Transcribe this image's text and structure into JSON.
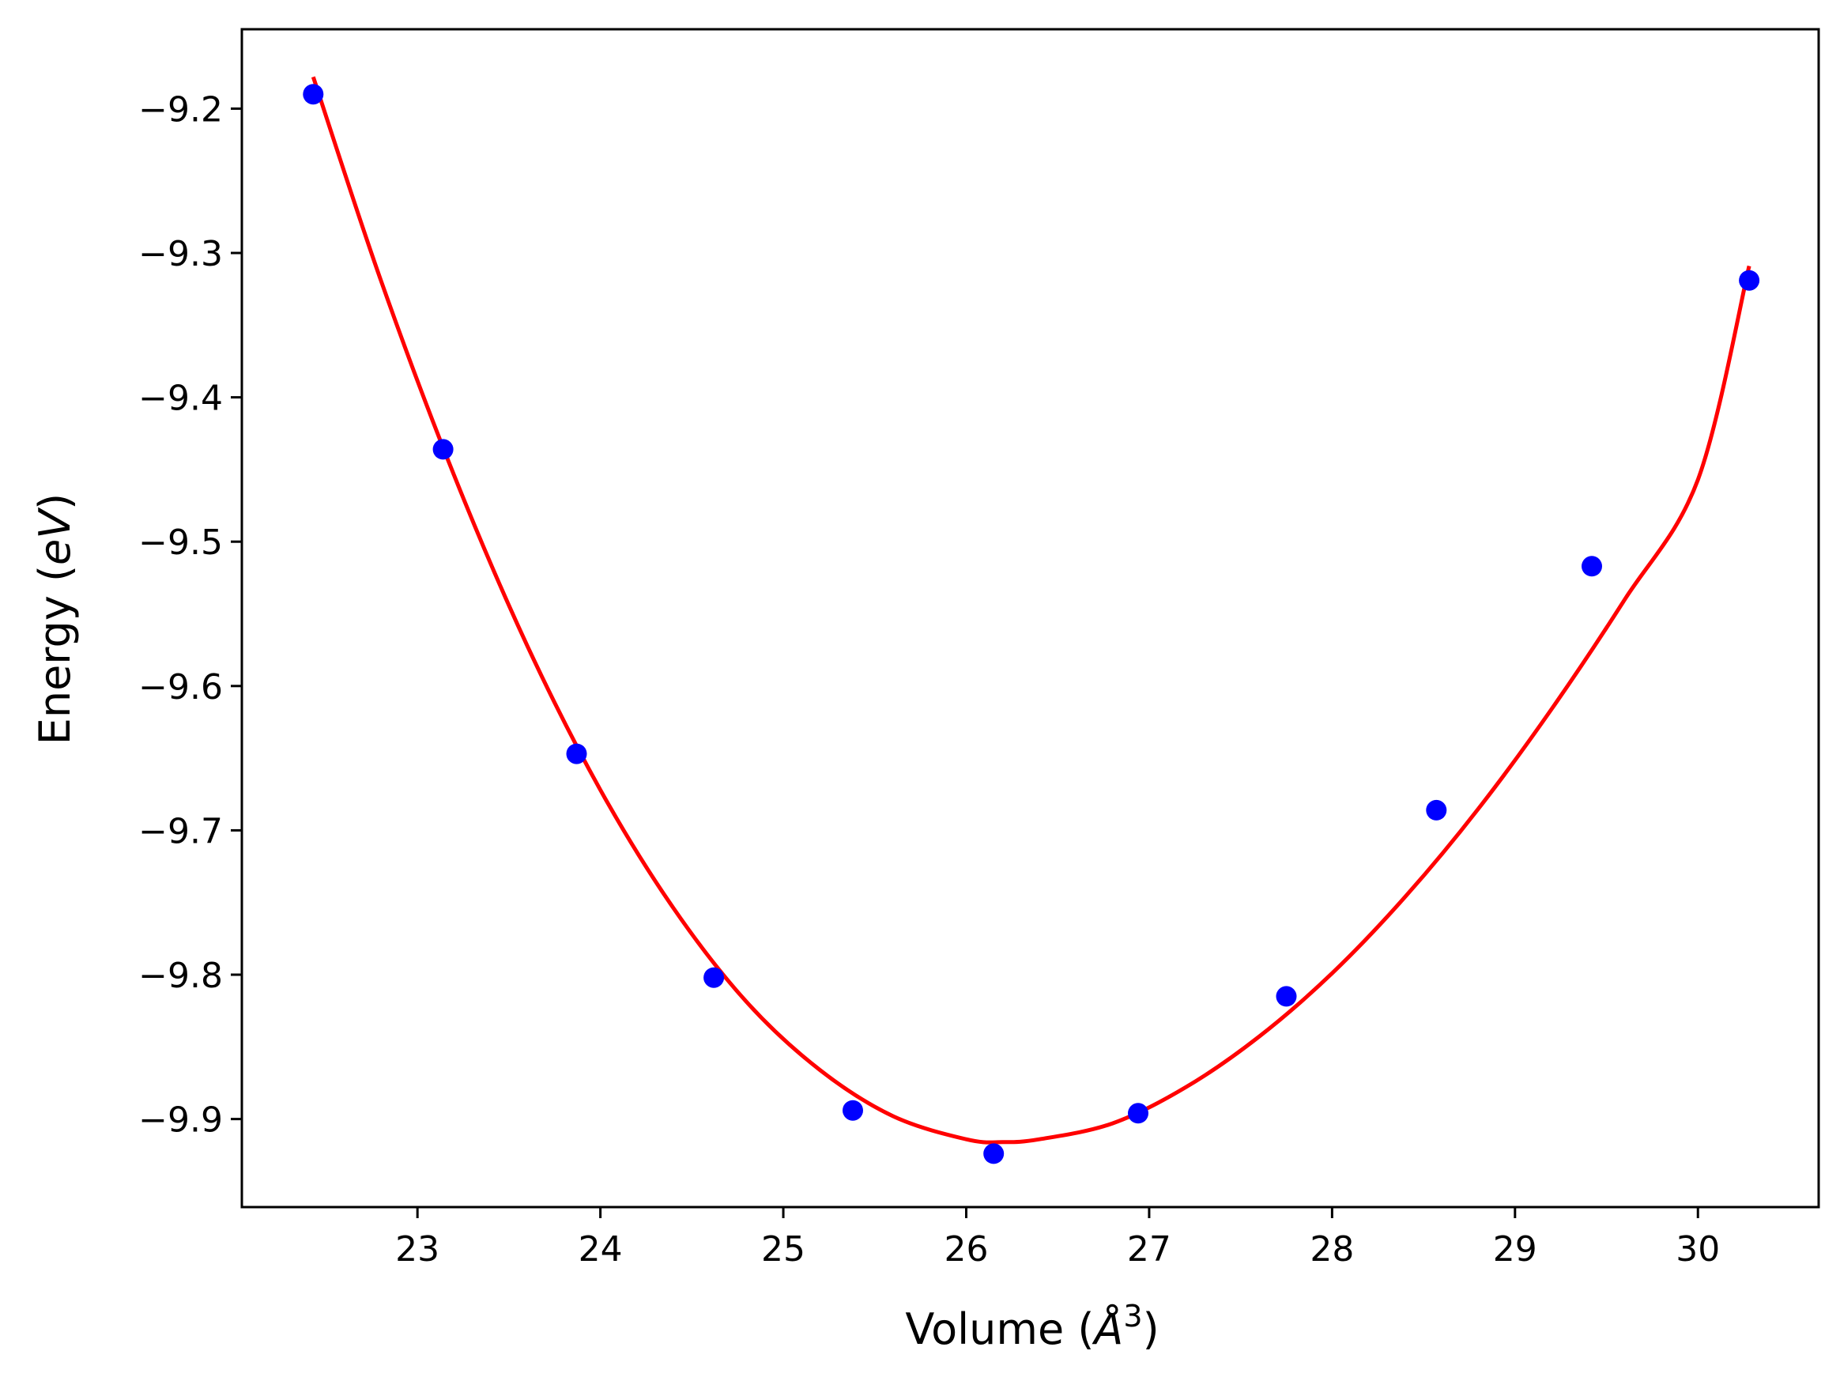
{
  "chart_data": {
    "type": "scatter",
    "title": "",
    "xlabel": {
      "prefix": "Volume (",
      "symbol": "Å",
      "superscript": "3",
      "suffix": ")"
    },
    "ylabel": {
      "prefix": "Energy (",
      "unit": "eV",
      "suffix": ")"
    },
    "xlim": [
      22.04,
      30.66
    ],
    "ylim": [
      -9.961,
      -9.145
    ],
    "x_ticks": [
      23,
      24,
      25,
      26,
      27,
      28,
      29,
      30
    ],
    "x_tick_labels": [
      "23",
      "24",
      "25",
      "26",
      "27",
      "28",
      "29",
      "30"
    ],
    "y_ticks": [
      -9.2,
      -9.3,
      -9.4,
      -9.5,
      -9.6,
      -9.7,
      -9.8,
      -9.9
    ],
    "y_tick_labels": [
      "−9.2",
      "−9.3",
      "−9.4",
      "−9.5",
      "−9.6",
      "−9.7",
      "−9.8",
      "−9.9"
    ],
    "grid": false,
    "colors": {
      "points": "#0000ff",
      "fit_line": "#ff0000",
      "axes": "#000000",
      "background": "#ffffff"
    },
    "series": [
      {
        "kind": "points",
        "x": [
          22.43,
          23.14,
          23.87,
          24.62,
          25.38,
          26.15,
          26.94,
          27.75,
          28.57,
          29.42,
          30.28
        ],
        "y": [
          -9.19,
          -9.436,
          -9.647,
          -9.802,
          -9.894,
          -9.924,
          -9.896,
          -9.815,
          -9.686,
          -9.517,
          -9.319
        ]
      },
      {
        "kind": "fit-line",
        "x": [
          22.43,
          22.8,
          23.2,
          23.6,
          24.0,
          24.4,
          24.8,
          25.2,
          25.6,
          26.0,
          26.2,
          26.4,
          26.8,
          27.2,
          27.6,
          28.0,
          28.4,
          28.8,
          29.2,
          29.6,
          30.0,
          30.28
        ],
        "y": [
          -9.178,
          -9.319,
          -9.454,
          -9.572,
          -9.672,
          -9.754,
          -9.819,
          -9.866,
          -9.898,
          -9.914,
          -9.916,
          -9.914,
          -9.903,
          -9.878,
          -9.843,
          -9.799,
          -9.746,
          -9.685,
          -9.616,
          -9.54,
          -9.457,
          -9.309
        ]
      }
    ]
  }
}
